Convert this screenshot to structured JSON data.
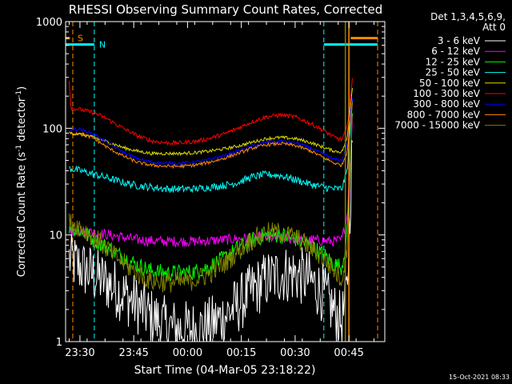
{
  "chart_data": {
    "type": "line",
    "title": "RHESSI Observing Summary Count Rates, Corrected",
    "xlabel": "Start Time (04-Mar-05 23:18:22)",
    "ylabel": "Corrected Count Rate (s",
    "ylabel_sup1": "-1",
    "ylabel_mid": " detector",
    "ylabel_sup2": "-1",
    "ylabel_end": ")",
    "yscale": "log",
    "ylim": [
      1,
      1000
    ],
    "y_ticks": [
      {
        "value": 1,
        "label": "1"
      },
      {
        "value": 10,
        "label": "10"
      },
      {
        "value": 100,
        "label": "100"
      },
      {
        "value": 1000,
        "label": "1000"
      }
    ],
    "xlim_minutes": [
      -34,
      55
    ],
    "x_ticks": [
      {
        "value": -30,
        "label": "23:30"
      },
      {
        "value": -15,
        "label": "23:45"
      },
      {
        "value": 0,
        "label": "00:00"
      },
      {
        "value": 15,
        "label": "00:15"
      },
      {
        "value": 30,
        "label": "00:30"
      },
      {
        "value": 45,
        "label": "00:45"
      }
    ],
    "legend": {
      "header_line1": "Det 1,3,4,5,6,9,",
      "header_line2": "Att 0",
      "placement": "right"
    },
    "series": [
      {
        "name": "3 - 6 keV",
        "color": "#ffffff",
        "x": [
          -33,
          -30,
          -26,
          -22,
          -18,
          -14,
          -10,
          -6,
          -2,
          2,
          6,
          10,
          14,
          18,
          22,
          26,
          30,
          34,
          38,
          41,
          43,
          44.5,
          46
        ],
        "y": [
          6,
          5,
          4.2,
          3.5,
          2.8,
          2.2,
          1.7,
          1.4,
          1.3,
          1.3,
          1.4,
          1.7,
          2.2,
          3,
          3.8,
          4.3,
          4.3,
          3.8,
          2.8,
          1.9,
          1.5,
          3,
          90
        ],
        "noise": 0.28
      },
      {
        "name": "6 - 12 keV",
        "color": "#ff00ff",
        "x": [
          -33,
          -30,
          -26,
          -22,
          -18,
          -14,
          -10,
          -6,
          -2,
          2,
          6,
          10,
          14,
          18,
          22,
          26,
          30,
          34,
          38,
          41,
          43,
          44.5,
          46
        ],
        "y": [
          11,
          11,
          10.5,
          10,
          9.5,
          9,
          8.8,
          8.7,
          8.7,
          8.7,
          8.8,
          9,
          9.2,
          9.4,
          9.4,
          9.3,
          9.1,
          9,
          8.8,
          8.7,
          9,
          15,
          130
        ],
        "noise": 0.05
      },
      {
        "name": "12 - 25 keV",
        "color": "#00ff00",
        "x": [
          -33,
          -30,
          -26,
          -22,
          -18,
          -14,
          -10,
          -6,
          -2,
          2,
          6,
          10,
          14,
          18,
          22,
          26,
          30,
          34,
          38,
          41,
          43,
          44.5,
          46
        ],
        "y": [
          12,
          11,
          9,
          7.5,
          6.2,
          5.2,
          4.6,
          4.4,
          4.4,
          4.5,
          5,
          6,
          7.5,
          9,
          10,
          10,
          9.2,
          8,
          6.5,
          5.3,
          5,
          10,
          160
        ],
        "noise": 0.08
      },
      {
        "name": "25 - 50 keV",
        "color": "#00ffff",
        "x": [
          -33,
          -30,
          -26,
          -22,
          -18,
          -14,
          -10,
          -6,
          -2,
          2,
          6,
          10,
          14,
          18,
          22,
          26,
          30,
          34,
          38,
          41,
          43,
          44.5,
          46
        ],
        "y": [
          42,
          40,
          37,
          34,
          31,
          29,
          28,
          27,
          27,
          27,
          28,
          29,
          31,
          35,
          37,
          36,
          33,
          30,
          28,
          27,
          27,
          40,
          200
        ],
        "noise": 0.035
      },
      {
        "name": "50 - 100 keV",
        "color": "#dddd00",
        "x": [
          -33,
          -30,
          -26,
          -22,
          -18,
          -14,
          -10,
          -6,
          -2,
          2,
          6,
          10,
          14,
          18,
          22,
          26,
          30,
          34,
          38,
          41,
          43,
          44.5,
          46
        ],
        "y": [
          90,
          88,
          82,
          74,
          66,
          61,
          58,
          58,
          58,
          59,
          61,
          64,
          68,
          74,
          80,
          82,
          80,
          74,
          66,
          61,
          60,
          80,
          250
        ],
        "noise": 0.015
      },
      {
        "name": "100 - 300 keV",
        "color": "#ff0000",
        "x": [
          -33,
          -32.5,
          -30,
          -26,
          -22,
          -18,
          -14,
          -10,
          -6,
          -2,
          2,
          6,
          10,
          14,
          18,
          22,
          26,
          30,
          34,
          38,
          41,
          43,
          44.5,
          46
        ],
        "y": [
          280,
          155,
          150,
          140,
          120,
          100,
          85,
          76,
          73,
          73,
          75,
          80,
          88,
          100,
          115,
          128,
          133,
          128,
          112,
          95,
          82,
          78,
          100,
          290
        ],
        "noise": 0.02
      },
      {
        "name": "300 - 800 keV",
        "color": "#0000ff",
        "x": [
          -33,
          -30,
          -26,
          -22,
          -18,
          -14,
          -10,
          -6,
          -2,
          2,
          6,
          10,
          14,
          18,
          22,
          26,
          30,
          34,
          38,
          41,
          43,
          44.5,
          46
        ],
        "y": [
          98,
          98,
          88,
          72,
          60,
          52,
          48,
          47,
          47,
          48,
          51,
          55,
          61,
          68,
          74,
          76,
          73,
          66,
          57,
          51,
          50,
          70,
          200
        ],
        "noise": 0.015
      },
      {
        "name": "800 - 7000 keV",
        "color": "#ff8c00",
        "x": [
          -33,
          -30,
          -26,
          -22,
          -18,
          -14,
          -10,
          -6,
          -2,
          2,
          6,
          10,
          14,
          18,
          22,
          26,
          30,
          34,
          38,
          41,
          43,
          44.5,
          46
        ],
        "y": [
          90,
          90,
          80,
          65,
          55,
          48,
          45,
          44,
          44,
          45,
          48,
          52,
          58,
          65,
          70,
          72,
          69,
          62,
          53,
          47,
          45,
          60,
          180
        ],
        "noise": 0.015
      },
      {
        "name": "7000 - 15000 keV",
        "color": "#808000",
        "x": [
          -33,
          -30,
          -26,
          -22,
          -18,
          -14,
          -10,
          -6,
          -2,
          2,
          6,
          10,
          14,
          18,
          22,
          26,
          30,
          34,
          38,
          41,
          43,
          44.5,
          46
        ],
        "y": [
          13,
          12,
          9.5,
          7.2,
          5.5,
          4.3,
          3.7,
          3.6,
          3.6,
          3.8,
          4.3,
          5.3,
          7,
          9,
          10.5,
          10.5,
          9.5,
          7.8,
          6,
          4.6,
          3.8,
          8,
          150
        ],
        "noise": 0.1
      }
    ],
    "markers": [
      {
        "label": "S",
        "color": "#ff8c00",
        "x_start": -32,
        "x_end": 53,
        "bar_y": 700,
        "bar_segments": [
          [
            -34,
            -32.8
          ],
          [
            45.5,
            53
          ]
        ]
      },
      {
        "label": "N",
        "color": "#00ffff",
        "x_start": -26,
        "x_end": 38,
        "bar_y": 610,
        "bar_segments": [
          [
            -34,
            -26
          ],
          [
            38,
            53
          ]
        ]
      }
    ],
    "event_lines": [
      {
        "x": 44,
        "color": "#808000"
      },
      {
        "x": 45,
        "color": "#ff8c00"
      }
    ],
    "grid": false
  },
  "footer": {
    "timestamp": "15-Oct-2021 08:33"
  }
}
